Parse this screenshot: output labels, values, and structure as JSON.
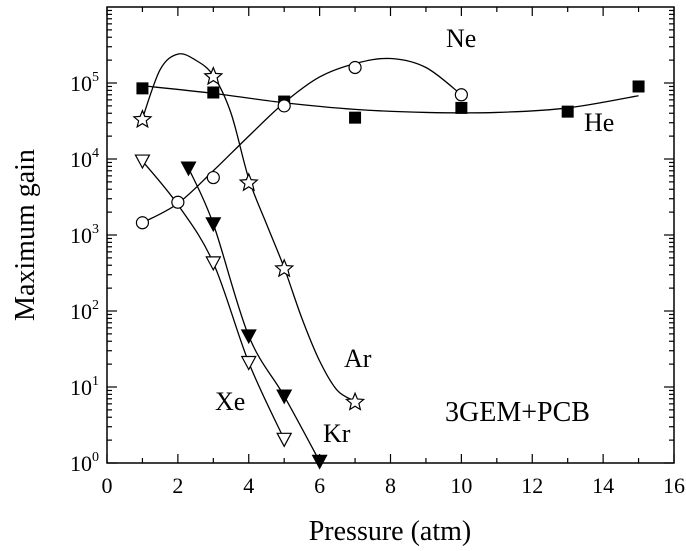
{
  "chart_data": {
    "type": "scatter",
    "title": "",
    "xlabel": "Pressure (atm)",
    "ylabel": "Maximum gain",
    "xlim": [
      0,
      16
    ],
    "ylim": [
      1,
      1000000
    ],
    "y_scale": "log",
    "x_ticks": [
      0,
      2,
      4,
      6,
      8,
      10,
      12,
      14,
      16
    ],
    "y_ticks": [
      {
        "base": "10",
        "exp": "0"
      },
      {
        "base": "10",
        "exp": "1"
      },
      {
        "base": "10",
        "exp": "2"
      },
      {
        "base": "10",
        "exp": "3"
      },
      {
        "base": "10",
        "exp": "4"
      },
      {
        "base": "10",
        "exp": "5"
      }
    ],
    "annotation": "3GEM+PCB",
    "grid": false,
    "series": [
      {
        "name": "He",
        "marker": "filled-square",
        "x": [
          1,
          3,
          5,
          7,
          10,
          13,
          15
        ],
        "y": [
          85000,
          75000,
          57000,
          35000,
          47000,
          42000,
          90000
        ],
        "curve": [
          [
            1,
            92000
          ],
          [
            3,
            73000
          ],
          [
            5,
            55000
          ],
          [
            7,
            45000
          ],
          [
            9,
            41000
          ],
          [
            11,
            41000
          ],
          [
            13,
            47000
          ],
          [
            15,
            68000
          ]
        ]
      },
      {
        "name": "Ne",
        "marker": "open-circle",
        "x": [
          1,
          2,
          3,
          5,
          7,
          10
        ],
        "y": [
          1450,
          2700,
          5700,
          50000,
          160000,
          70000
        ],
        "curve": [
          [
            1,
            1450
          ],
          [
            2,
            2600
          ],
          [
            3,
            7000
          ],
          [
            4,
            20000
          ],
          [
            5,
            55000
          ],
          [
            6,
            120000
          ],
          [
            7,
            180000
          ],
          [
            8,
            210000
          ],
          [
            9,
            160000
          ],
          [
            10,
            70000
          ]
        ]
      },
      {
        "name": "Ar",
        "marker": "open-star",
        "x": [
          1,
          3,
          4,
          5,
          7
        ],
        "y": [
          34000,
          125000,
          5000,
          370,
          6.5
        ],
        "curve": [
          [
            1,
            34000
          ],
          [
            1.5,
            150000
          ],
          [
            2,
            240000
          ],
          [
            2.5,
            200000
          ],
          [
            3,
            125000
          ],
          [
            3.5,
            40000
          ],
          [
            4,
            5500
          ],
          [
            4.5,
            1400
          ],
          [
            5,
            370
          ],
          [
            5.5,
            80
          ],
          [
            6,
            22
          ],
          [
            6.5,
            9
          ],
          [
            7,
            6.5
          ]
        ]
      },
      {
        "name": "Kr",
        "marker": "filled-triangle-down",
        "x": [
          2.3,
          3,
          4,
          5,
          6
        ],
        "y": [
          7600,
          1400,
          47,
          7.6,
          1.05
        ],
        "curve": [
          [
            2.3,
            7600
          ],
          [
            3,
            1400
          ],
          [
            4,
            47
          ],
          [
            5,
            7.6
          ],
          [
            6,
            1.05
          ]
        ]
      },
      {
        "name": "Xe",
        "marker": "open-triangle-down",
        "x": [
          1,
          3,
          4,
          5
        ],
        "y": [
          9400,
          430,
          21,
          2.05
        ],
        "curve": [
          [
            1,
            9400
          ],
          [
            2,
            2500
          ],
          [
            3,
            430
          ],
          [
            4,
            21
          ],
          [
            5,
            2.05
          ]
        ]
      }
    ]
  }
}
